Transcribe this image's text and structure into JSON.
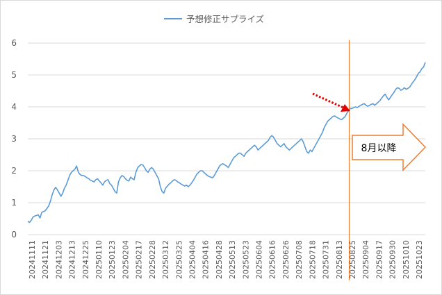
{
  "chart_data": {
    "type": "line",
    "title": "",
    "xlabel": "",
    "ylabel": "",
    "ylim": [
      0,
      6
    ],
    "yticks": [
      0,
      1,
      2,
      3,
      4,
      5,
      6
    ],
    "grid": true,
    "legend_position": "top",
    "series": [
      {
        "name": "予想修正サプライズ",
        "color": "#5b9bd5",
        "values": [
          0.42,
          0.38,
          0.45,
          0.55,
          0.58,
          0.6,
          0.62,
          0.52,
          0.7,
          0.72,
          0.75,
          0.82,
          0.9,
          1.05,
          1.25,
          1.4,
          1.48,
          1.4,
          1.3,
          1.2,
          1.3,
          1.45,
          1.55,
          1.7,
          1.85,
          1.95,
          2.0,
          2.05,
          2.15,
          1.95,
          1.88,
          1.85,
          1.85,
          1.82,
          1.78,
          1.75,
          1.7,
          1.68,
          1.65,
          1.72,
          1.75,
          1.68,
          1.62,
          1.55,
          1.65,
          1.7,
          1.72,
          1.6,
          1.55,
          1.45,
          1.35,
          1.3,
          1.65,
          1.78,
          1.85,
          1.82,
          1.75,
          1.7,
          1.68,
          1.8,
          1.75,
          1.72,
          1.95,
          2.1,
          2.15,
          2.2,
          2.18,
          2.1,
          2.0,
          1.95,
          2.05,
          2.1,
          2.05,
          1.95,
          1.85,
          1.75,
          1.5,
          1.35,
          1.3,
          1.45,
          1.52,
          1.58,
          1.62,
          1.68,
          1.72,
          1.7,
          1.65,
          1.62,
          1.58,
          1.55,
          1.52,
          1.55,
          1.5,
          1.55,
          1.62,
          1.7,
          1.8,
          1.9,
          1.95,
          2.0,
          2.0,
          1.95,
          1.9,
          1.85,
          1.82,
          1.8,
          1.78,
          1.85,
          1.95,
          2.05,
          2.15,
          2.2,
          2.22,
          2.18,
          2.15,
          2.1,
          2.2,
          2.3,
          2.4,
          2.45,
          2.5,
          2.55,
          2.55,
          2.5,
          2.45,
          2.55,
          2.6,
          2.65,
          2.7,
          2.75,
          2.8,
          2.75,
          2.65,
          2.7,
          2.75,
          2.8,
          2.85,
          2.9,
          2.95,
          3.05,
          3.1,
          3.05,
          2.95,
          2.85,
          2.8,
          2.75,
          2.8,
          2.85,
          2.75,
          2.7,
          2.65,
          2.7,
          2.75,
          2.8,
          2.85,
          2.9,
          2.95,
          3.0,
          2.9,
          2.75,
          2.6,
          2.55,
          2.65,
          2.6,
          2.7,
          2.8,
          2.9,
          3.0,
          3.1,
          3.2,
          3.35,
          3.45,
          3.55,
          3.6,
          3.65,
          3.7,
          3.72,
          3.68,
          3.65,
          3.62,
          3.6,
          3.65,
          3.7,
          3.8,
          3.88,
          3.95,
          3.95,
          3.98,
          4.0,
          3.98,
          4.02,
          4.05,
          4.08,
          4.1,
          4.05,
          4.02,
          4.05,
          4.08,
          4.1,
          4.05,
          4.1,
          4.15,
          4.2,
          4.28,
          4.35,
          4.4,
          4.3,
          4.22,
          4.3,
          4.38,
          4.45,
          4.55,
          4.6,
          4.58,
          4.52,
          4.55,
          4.6,
          4.55,
          4.58,
          4.62,
          4.7,
          4.78,
          4.85,
          4.95,
          5.05,
          5.1,
          5.2,
          5.25,
          5.4
        ]
      }
    ],
    "x_tick_labels": [
      "20241111",
      "20241121",
      "20241203",
      "20241213",
      "20241225",
      "20250110",
      "20250123",
      "20250204",
      "20250217",
      "20250228",
      "20250312",
      "20250325",
      "20250404",
      "20250416",
      "20250428",
      "20250513",
      "20250523",
      "20250604",
      "20250616",
      "20250626",
      "20250708",
      "20250718",
      "20250731",
      "20250813",
      "20250825",
      "20250904",
      "20250917",
      "20250930",
      "20251010",
      "20251023"
    ],
    "vertical_marker_color": "#ed7d31",
    "arrow_color": "#e00000",
    "annotation": {
      "text": "8月以降",
      "border_color": "#ed7d31"
    }
  }
}
